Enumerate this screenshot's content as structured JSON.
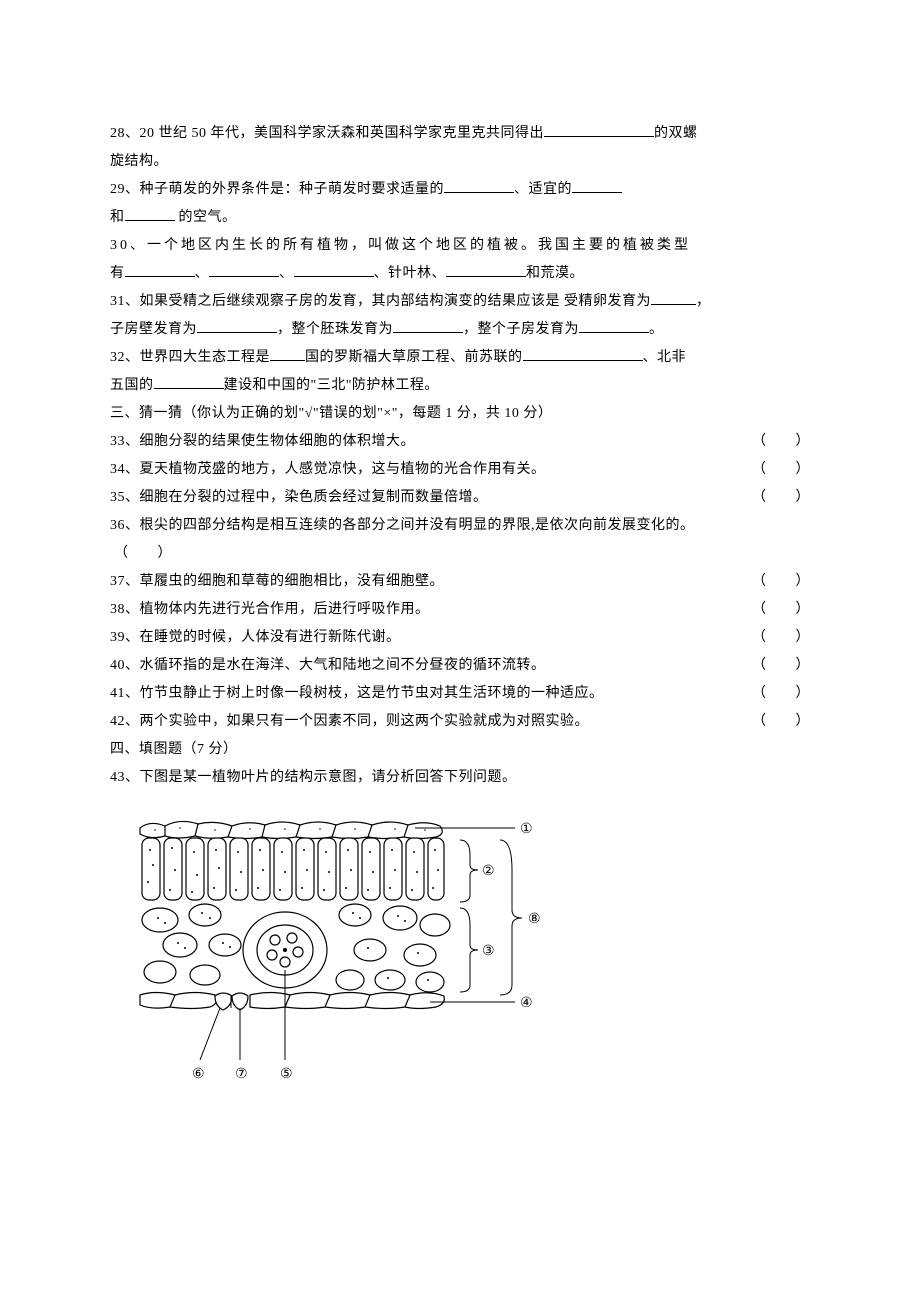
{
  "q28": {
    "prefix": "28、20 世纪 50 年代，美国科学家沃森和英国科学家克里克共同得出",
    "suffix": "的双螺",
    "line2": "旋结构。",
    "blank_w": 110
  },
  "q29": {
    "prefix": "29、种子萌发的外界条件是：种子萌发时要求适量的",
    "mid1": "、适宜的",
    "line2a": "和",
    "line2b": " 的空气。",
    "blank1_w": 70,
    "blank2_w": 50,
    "blank3_w": 50
  },
  "q30": {
    "line1": "30、一个地区内生长的所有植物，叫做这个地区的植被。我国主要的植被类型",
    "line2a": "有",
    "sep": "、",
    "mid": "、针叶林、",
    "tail": "和荒漠。",
    "b1_w": 70,
    "b2_w": 70,
    "b3_w": 80,
    "b4_w": 80
  },
  "q31": {
    "line1a": "31、如果受精之后继续观察子房的发育，其内部结构演变的结果应该是 受精卵发育为",
    "line1b": "，",
    "line2a": "子房壁发育为",
    "line2b": "，整个胚珠发育为",
    "line2c": "，整个子房发育为",
    "line2d": "。",
    "b1_w": 45,
    "b2_w": 80,
    "b3_w": 70,
    "b4_w": 70
  },
  "q32": {
    "line1a": "32、世界四大生态工程是",
    "line1b": "国的罗斯福大草原工程、前苏联的",
    "line1c": "、北非",
    "line2a": "五国的",
    "line2b": "建设和中国的\"三北\"防护林工程。",
    "b1_w": 35,
    "b2_w": 120,
    "b3_w": 70
  },
  "section3": "三、猜一猜（你认为正确的划\"√\"错误的划\"×\"，每题 1 分，共 10 分）",
  "tf": [
    {
      "n": "33",
      "t": "细胞分裂的结果使生物体细胞的体积增大。"
    },
    {
      "n": "34",
      "t": "夏天植物茂盛的地方，人感觉凉快，这与植物的光合作用有关。"
    },
    {
      "n": "35",
      "t": "细胞在分裂的过程中，染色质会经过复制而数量倍增。"
    }
  ],
  "q36": {
    "line1": "36、根尖的四部分结构是相互连续的各部分之间并没有明显的界限,是依次向前发展变化的。",
    "brackets": "（　　）"
  },
  "tf2": [
    {
      "n": "37",
      "t": "草履虫的细胞和草莓的细胞相比，没有细胞壁。"
    },
    {
      "n": "38",
      "t": "植物体内先进行光合作用，后进行呼吸作用。"
    },
    {
      "n": "39",
      "t": "在睡觉的时候，人体没有进行新陈代谢。"
    },
    {
      "n": "40",
      "t": "水循环指的是水在海洋、大气和陆地之间不分昼夜的循环流转。"
    },
    {
      "n": "41",
      "t": "竹节虫静止于树上时像一段树枝，这是竹节虫对其生活环境的一种适应。"
    },
    {
      "n": "42",
      "t": "两个实验中，如果只有一个因素不同，则这两个实验就成为对照实验。"
    }
  ],
  "section4": "四、填图题（7 分）",
  "q43": "43、下图是某一植物叶片的结构示意意图，请分析回答下列问题。",
  "q43_real": "43、下图是某一植物叶片的结构示意图，请分析回答下列问题。",
  "bracket_txt": "（　　）",
  "labels": {
    "l1": "①",
    "l2": "②",
    "l3": "③",
    "l4": "④",
    "l5": "⑤",
    "l6": "⑥",
    "l7": "⑦",
    "l8": "⑧"
  }
}
